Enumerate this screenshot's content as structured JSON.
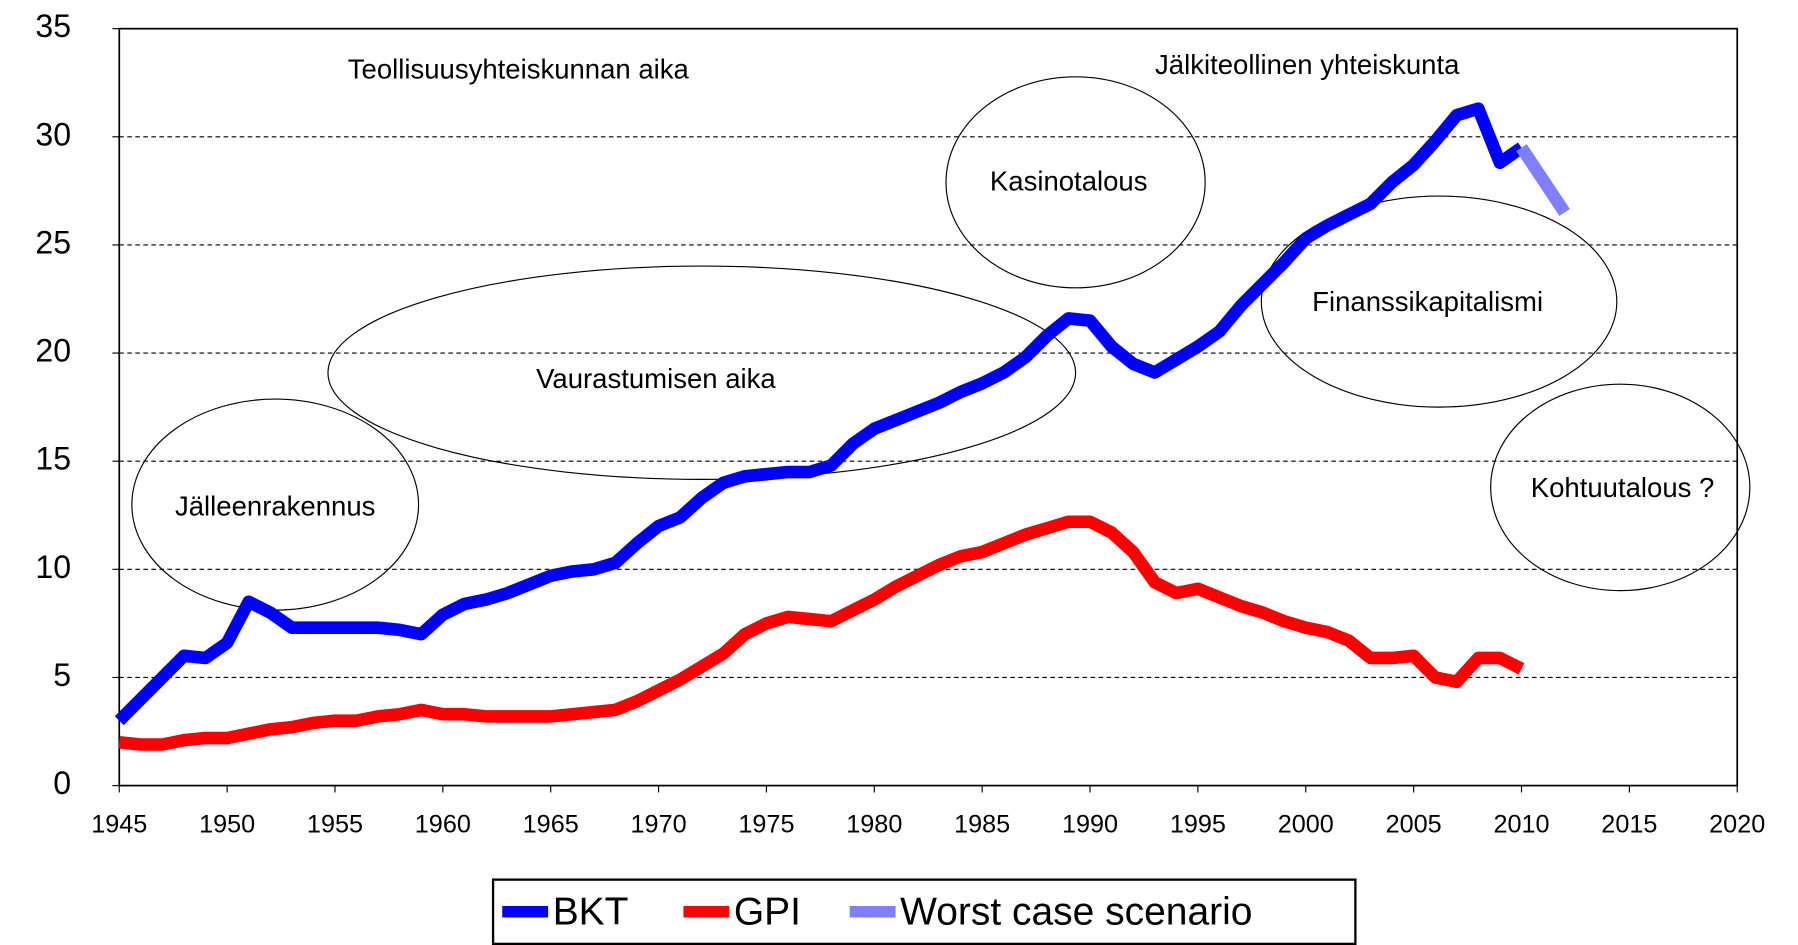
{
  "chart_data": {
    "type": "line",
    "series": [
      {
        "name": "BKT",
        "color": "#0000ff",
        "x": [
          1945,
          1946,
          1947,
          1948,
          1949,
          1950,
          1951,
          1952,
          1953,
          1954,
          1955,
          1956,
          1957,
          1958,
          1959,
          1960,
          1961,
          1962,
          1963,
          1964,
          1965,
          1966,
          1967,
          1968,
          1969,
          1970,
          1971,
          1972,
          1973,
          1974,
          1975,
          1976,
          1977,
          1978,
          1979,
          1980,
          1981,
          1982,
          1983,
          1984,
          1985,
          1986,
          1987,
          1988,
          1989,
          1990,
          1991,
          1992,
          1993,
          1994,
          1995,
          1996,
          1997,
          1998,
          1999,
          2000,
          2001,
          2002,
          2003,
          2004,
          2005,
          2006,
          2007,
          2008,
          2009,
          2010
        ],
        "values": [
          3.0,
          4.0,
          5.0,
          6.0,
          5.9,
          6.6,
          8.5,
          8.0,
          7.3,
          7.3,
          7.3,
          7.3,
          7.3,
          7.2,
          7.0,
          7.9,
          8.4,
          8.6,
          8.9,
          9.3,
          9.7,
          9.9,
          10.0,
          10.3,
          11.2,
          12.0,
          12.4,
          13.3,
          14.0,
          14.3,
          14.4,
          14.5,
          14.5,
          14.8,
          15.8,
          16.5,
          16.9,
          17.3,
          17.7,
          18.2,
          18.6,
          19.1,
          19.8,
          20.8,
          21.6,
          21.5,
          20.3,
          19.5,
          19.1,
          19.7,
          20.3,
          21.0,
          22.2,
          23.2,
          24.2,
          25.3,
          25.9,
          26.4,
          26.9,
          27.9,
          28.7,
          29.8,
          31.0,
          31.3,
          28.8,
          29.5
        ]
      },
      {
        "name": "GPI",
        "color": "#ff0000",
        "x": [
          1945,
          1946,
          1947,
          1948,
          1949,
          1950,
          1951,
          1952,
          1953,
          1954,
          1955,
          1956,
          1957,
          1958,
          1959,
          1960,
          1961,
          1962,
          1963,
          1964,
          1965,
          1966,
          1967,
          1968,
          1969,
          1970,
          1971,
          1972,
          1973,
          1974,
          1975,
          1976,
          1977,
          1978,
          1979,
          1980,
          1981,
          1982,
          1983,
          1984,
          1985,
          1986,
          1987,
          1988,
          1989,
          1990,
          1991,
          1992,
          1993,
          1994,
          1995,
          1996,
          1997,
          1998,
          1999,
          2000,
          2001,
          2002,
          2003,
          2004,
          2005,
          2006,
          2007,
          2008,
          2009,
          2010
        ],
        "values": [
          2.0,
          1.9,
          1.9,
          2.1,
          2.2,
          2.2,
          2.4,
          2.6,
          2.7,
          2.9,
          3.0,
          3.0,
          3.2,
          3.3,
          3.5,
          3.3,
          3.3,
          3.2,
          3.2,
          3.2,
          3.2,
          3.3,
          3.4,
          3.5,
          3.9,
          4.4,
          4.9,
          5.5,
          6.1,
          7.0,
          7.5,
          7.8,
          7.7,
          7.6,
          8.1,
          8.6,
          9.2,
          9.7,
          10.2,
          10.6,
          10.8,
          11.2,
          11.6,
          11.9,
          12.2,
          12.2,
          11.7,
          10.8,
          9.4,
          8.9,
          9.1,
          8.7,
          8.3,
          8.0,
          7.6,
          7.3,
          7.1,
          6.7,
          5.9,
          5.9,
          6.0,
          5.0,
          4.8,
          5.9,
          5.9,
          5.4
        ]
      },
      {
        "name": "Worst case scenario",
        "color": "#8080ff",
        "x": [
          2010,
          2011,
          2012
        ],
        "values": [
          29.5,
          28.0,
          26.5
        ]
      }
    ],
    "xlim": [
      1945,
      2020
    ],
    "xticks": [
      1945,
      1950,
      1955,
      1960,
      1965,
      1970,
      1975,
      1980,
      1985,
      1990,
      1995,
      2000,
      2005,
      2010,
      2015,
      2020
    ],
    "ylim": [
      0,
      35
    ],
    "yticks": [
      0,
      5,
      10,
      15,
      20,
      25,
      30,
      35
    ],
    "grid": true,
    "legend": "bottom",
    "annotations": [
      "Teollisuusyhteiskunnan aika",
      "Jälkiteollinen yhteiskunta",
      "Kasinotalous",
      "Vaurastumisen aika",
      "Jälleenrakennus",
      "Finanssikapitalismi",
      "Kohtuutalous ?"
    ]
  }
}
